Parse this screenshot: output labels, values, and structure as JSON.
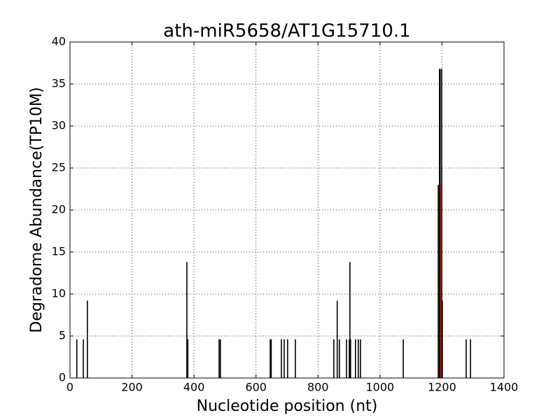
{
  "chart_data": {
    "type": "vlines",
    "title": "ath-miR5658/AT1G15710.1",
    "xlabel": "Nucleotide position (nt)",
    "ylabel": "Degradome Abundance(TP10M)",
    "xlim": [
      0,
      1400
    ],
    "ylim": [
      0,
      40
    ],
    "xticks": [
      0,
      200,
      400,
      600,
      800,
      1000,
      1200,
      1400
    ],
    "yticks": [
      0,
      5,
      10,
      15,
      20,
      25,
      30,
      35,
      40
    ],
    "grid": true,
    "series": [
      {
        "color": "#000000",
        "x": [
          22,
          43,
          56,
          377,
          380,
          481,
          485,
          646,
          649,
          682,
          691,
          702,
          727,
          851,
          862,
          869,
          892,
          901,
          903,
          905,
          921,
          930,
          937,
          1075,
          1188,
          1192,
          1194,
          1199,
          1201,
          1278,
          1292
        ],
        "values": [
          4.6,
          4.6,
          9.2,
          13.8,
          4.6,
          4.6,
          4.6,
          4.6,
          4.6,
          4.6,
          4.6,
          4.6,
          4.6,
          4.6,
          9.2,
          4.6,
          4.6,
          4.6,
          13.8,
          4.6,
          4.6,
          4.6,
          4.6,
          4.6,
          23,
          36.8,
          36.8,
          36.8,
          9.2,
          4.6,
          4.6
        ]
      },
      {
        "color": "#ff0000",
        "x": [
          1196
        ],
        "values": [
          23
        ]
      }
    ]
  }
}
